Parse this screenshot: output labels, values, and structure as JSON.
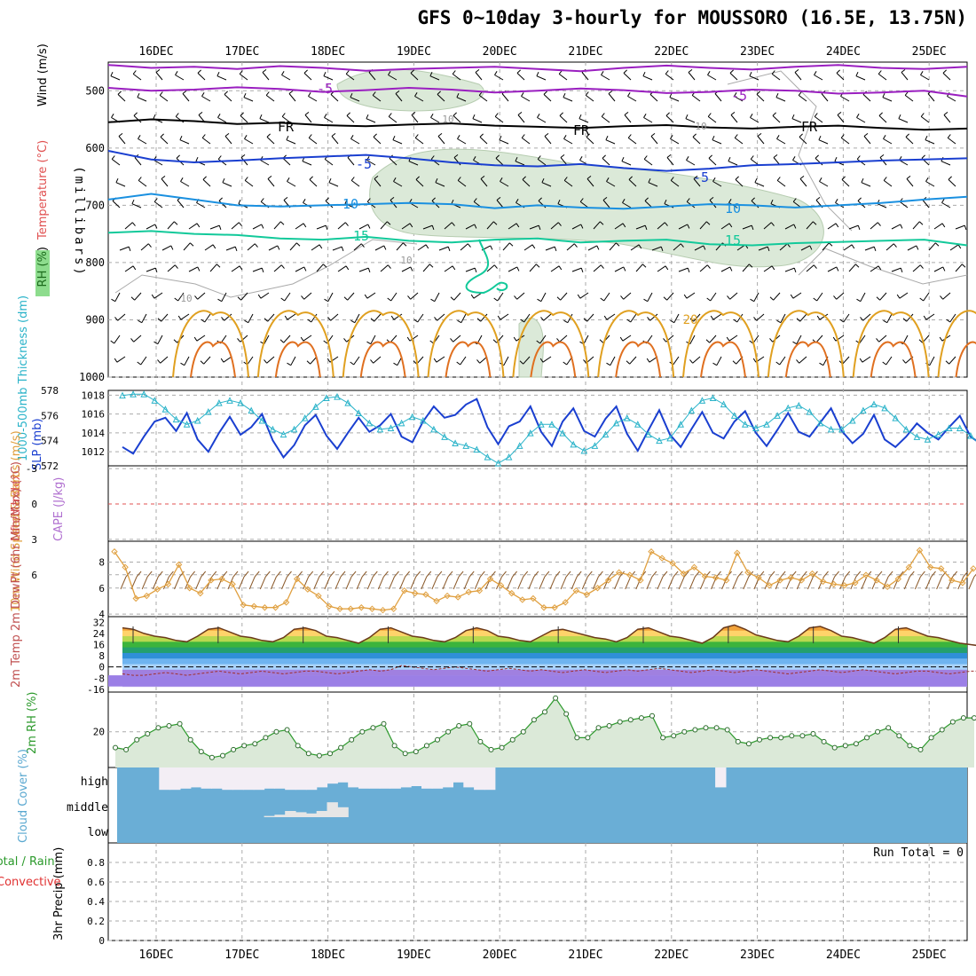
{
  "title": "GFS 0~10day 3-hourly for MOUSSORO (16.5E, 13.75N)",
  "dates": [
    "16DEC",
    "17DEC",
    "18DEC",
    "19DEC",
    "20DEC",
    "21DEC",
    "22DEC",
    "23DEC",
    "24DEC",
    "25DEC"
  ],
  "colors": {
    "purple": "#9a1fc0",
    "black": "#000000",
    "blue": "#1a3fd0",
    "lightblue": "#1a90e0",
    "teal": "#12c99a",
    "orange": "#e0a020",
    "rh_fill": "#dbe9d8",
    "slp": "#1a3fd0",
    "thick": "#2ab3c9",
    "wind10": "#e0a040",
    "barb": "#8b5a2b",
    "rh2m": "#2c9a2c",
    "cloud": "#6aaed6",
    "grid": "#aaaaaa"
  },
  "chart_data": [
    {
      "type": "line",
      "name": "upper-air",
      "ylabel_parts": [
        "RH (%)",
        "Temperature (°C)",
        "Wind (m/s)"
      ],
      "ylabel2": "(millibars)",
      "yticks": [
        500,
        600,
        700,
        800,
        900,
        1000
      ],
      "ylim": [
        450,
        1000
      ],
      "contour_labels": [
        "-5",
        "-5",
        "FR",
        "FR",
        "FR",
        "-5",
        "-5",
        "10",
        "10",
        "15",
        "15",
        "10",
        "10",
        "10",
        "20"
      ],
      "isotherms": [
        {
          "level": "-5",
          "color": "purple",
          "p": [
            455,
            460,
            458,
            462,
            457,
            460,
            465,
            462,
            460,
            458,
            462,
            466,
            460,
            456,
            460,
            463,
            458,
            455,
            460,
            462,
            458
          ]
        },
        {
          "level": "-5b",
          "color": "purple",
          "p": [
            495,
            500,
            498,
            494,
            497,
            502,
            499,
            495,
            498,
            503,
            500,
            496,
            499,
            504,
            502,
            498,
            500,
            505,
            503,
            500,
            510
          ]
        },
        {
          "level": "FR",
          "color": "black",
          "p": [
            555,
            550,
            553,
            558,
            556,
            560,
            562,
            559,
            557,
            561,
            563,
            565,
            562,
            560,
            564,
            566,
            563,
            561,
            565,
            568,
            566
          ]
        },
        {
          "level": "-5c",
          "color": "blue",
          "p": [
            605,
            620,
            625,
            622,
            618,
            615,
            612,
            618,
            625,
            630,
            632,
            628,
            635,
            640,
            636,
            630,
            628,
            625,
            622,
            620,
            618
          ]
        },
        {
          "level": "10",
          "color": "lightblue",
          "p": [
            690,
            680,
            690,
            700,
            702,
            700,
            698,
            696,
            698,
            705,
            700,
            704,
            706,
            702,
            698,
            700,
            704,
            700,
            696,
            690,
            685
          ]
        },
        {
          "level": "15",
          "color": "teal",
          "p": [
            748,
            745,
            750,
            752,
            758,
            760,
            755,
            762,
            765,
            760,
            758,
            765,
            762,
            760,
            768,
            770,
            766,
            764,
            762,
            760,
            770
          ]
        }
      ]
    },
    {
      "type": "line",
      "name": "slp-thickness",
      "ylabel_left": "1000-500mb Thickness (dm)",
      "ylabel_right": "SLP (mb)",
      "yticks_left": [
        "578",
        "576",
        "574",
        "572"
      ],
      "yticks_right": [
        "1018",
        "1016",
        "1014",
        "1012"
      ],
      "slp": [
        1012.5,
        1011.8,
        1013.6,
        1015.2,
        1015.6,
        1014.2,
        1016.1,
        1013.3,
        1012.0,
        1014.0,
        1015.7,
        1013.8,
        1014.6,
        1016.0,
        1013.2,
        1011.4,
        1012.7,
        1014.8,
        1015.9,
        1013.7,
        1012.3,
        1014.0,
        1015.6,
        1014.1,
        1014.8,
        1016.0,
        1013.6,
        1013.0,
        1015.2,
        1016.8,
        1015.6,
        1015.9,
        1017.0,
        1017.6,
        1014.6,
        1012.8,
        1014.7,
        1015.2,
        1016.8,
        1014.1,
        1012.6,
        1015.2,
        1016.6,
        1014.2,
        1013.6,
        1015.5,
        1016.8,
        1013.9,
        1012.1,
        1014.3,
        1016.4,
        1013.8,
        1012.5,
        1014.4,
        1016.2,
        1014.0,
        1013.4,
        1015.2,
        1016.3,
        1014.0,
        1012.6,
        1014.3,
        1016.1,
        1014.1,
        1013.6,
        1015.1,
        1016.6,
        1014.2,
        1012.9,
        1013.9,
        1015.9,
        1013.3,
        1012.5,
        1013.6,
        1015.0,
        1014.0,
        1013.3,
        1014.6,
        1015.8,
        1013.6,
        1012.8
      ],
      "thickness": [
        577.6,
        577.7,
        577.7,
        577.2,
        576.5,
        575.7,
        575.3,
        575.6,
        576.3,
        577.0,
        577.2,
        577.0,
        576.4,
        575.6,
        574.9,
        574.5,
        574.9,
        575.8,
        576.7,
        577.4,
        577.5,
        577.0,
        576.2,
        575.4,
        574.9,
        575.0,
        575.4,
        575.9,
        575.6,
        574.9,
        574.3,
        573.8,
        573.6,
        573.3,
        572.7,
        572.2,
        572.7,
        573.6,
        574.6,
        575.3,
        575.3,
        574.6,
        573.7,
        573.2,
        573.6,
        574.5,
        575.4,
        575.8,
        575.3,
        574.5,
        574.0,
        574.2,
        575.3,
        576.4,
        577.2,
        577.4,
        576.9,
        576.0,
        575.3,
        575.0,
        575.3,
        576.0,
        576.6,
        576.8,
        576.3,
        575.4,
        574.9,
        574.9,
        575.6,
        576.4,
        576.9,
        576.6,
        575.8,
        574.9,
        574.3,
        574.1,
        574.5,
        575.0,
        575.0,
        574.4,
        573.6
      ]
    },
    {
      "type": "line",
      "name": "cape-li",
      "ylabel_left": "Lifted Index",
      "ylabel_right": "CAPE (J/kg)",
      "yticks": [
        "-3",
        "0",
        "3",
        "6"
      ]
    },
    {
      "type": "line",
      "name": "wind10m",
      "ylabel": "10m Wind Speed & Barbs (m/s)",
      "yticks": [
        "8",
        "6",
        "4"
      ],
      "speed": [
        8.8,
        7.6,
        5.2,
        5.4,
        5.9,
        6.3,
        7.8,
        6.0,
        5.6,
        6.6,
        6.7,
        6.3,
        4.7,
        4.6,
        4.5,
        4.5,
        4.9,
        6.7,
        5.9,
        5.4,
        4.6,
        4.4,
        4.4,
        4.5,
        4.4,
        4.3,
        4.4,
        5.8,
        5.6,
        5.5,
        5.0,
        5.4,
        5.3,
        5.7,
        5.8,
        6.7,
        6.2,
        5.6,
        5.1,
        5.2,
        4.5,
        4.5,
        4.9,
        5.8,
        5.5,
        6.0,
        6.6,
        7.2,
        7.0,
        6.6,
        8.8,
        8.3,
        7.9,
        7.1,
        7.6,
        6.9,
        6.8,
        6.6,
        8.7,
        7.2,
        6.8,
        6.2,
        6.6,
        6.8,
        6.6,
        7.1,
        6.5,
        6.3,
        6.2,
        6.4,
        7.0,
        6.6,
        6.1,
        6.7,
        7.6,
        8.9,
        7.6,
        7.5,
        6.6,
        6.4,
        7.5
      ]
    },
    {
      "type": "area",
      "name": "temp2m",
      "ylabel": "2m Temp 2m DewPt (6hr Min/Max) (°C)",
      "yticks": [
        "32",
        "24",
        "16",
        "8",
        "0",
        "-8",
        "-16"
      ],
      "temp": [
        28,
        27,
        24,
        22,
        21,
        19,
        18,
        22,
        27,
        28,
        25,
        22,
        21,
        19,
        18,
        21,
        27,
        28,
        26,
        22,
        21,
        19,
        17,
        21,
        27,
        28,
        25,
        22,
        21,
        19,
        18,
        21,
        26,
        28,
        26,
        22,
        21,
        19,
        18,
        22,
        26,
        27,
        25,
        23,
        21,
        20,
        18,
        21,
        27,
        28,
        25,
        22,
        21,
        19,
        17,
        21,
        28,
        30,
        27,
        23,
        21,
        19,
        18,
        22,
        28,
        29,
        26,
        22,
        21,
        19,
        17,
        21,
        27,
        28,
        25,
        22,
        21,
        19,
        17,
        16,
        15
      ],
      "dewpt": [
        -5,
        -6,
        -6,
        -5,
        -4,
        -5,
        -6,
        -5,
        -4,
        -3,
        -4,
        -5,
        -4,
        -3,
        -4,
        -5,
        -4,
        -3,
        -3,
        -4,
        -5,
        -4,
        -3,
        -2,
        -3,
        -2,
        1,
        0,
        -1,
        -2,
        -1,
        0,
        -1,
        -2,
        -3,
        -2,
        -1,
        -2,
        -3,
        -2,
        -3,
        -4,
        -3,
        -2,
        -3,
        -4,
        -3,
        -2,
        -3,
        -2,
        -1,
        -2,
        -3,
        -4,
        -3,
        -2,
        -3,
        -4,
        -3,
        -2,
        -3,
        -4,
        -5,
        -4,
        -3,
        -2,
        -3,
        -4,
        -3,
        -2,
        -3,
        -4,
        -5,
        -4,
        -3,
        -3,
        -4,
        -5,
        -4,
        -3,
        -3
      ]
    },
    {
      "type": "area",
      "name": "rh2m",
      "ylabel": "2m RH (%)",
      "yticks": [
        "20"
      ],
      "rh": [
        12,
        11,
        16,
        19,
        22,
        23,
        24,
        16,
        10,
        7,
        8,
        11,
        13,
        14,
        17,
        20,
        21,
        13,
        9,
        8,
        9,
        12,
        16,
        20,
        22,
        24,
        13,
        9,
        10,
        13,
        16,
        20,
        23,
        24,
        15,
        11,
        12,
        16,
        20,
        26,
        30,
        37,
        29,
        17,
        17,
        22,
        23,
        25,
        26,
        27,
        28,
        17,
        18,
        20,
        21,
        22,
        22,
        21,
        15,
        14,
        16,
        17,
        17,
        18,
        18,
        19,
        15,
        12,
        13,
        14,
        17,
        20,
        22,
        18,
        13,
        11,
        17,
        21,
        25,
        27,
        27
      ]
    },
    {
      "type": "bar",
      "name": "cloud-cover",
      "ylabel": "Cloud Cover (%)",
      "layers": [
        "high",
        "middle",
        "low"
      ],
      "high": [
        100,
        100,
        100,
        100,
        10,
        10,
        15,
        20,
        15,
        15,
        10,
        10,
        10,
        10,
        15,
        15,
        10,
        10,
        10,
        20,
        35,
        40,
        20,
        15,
        15,
        15,
        15,
        20,
        25,
        15,
        15,
        20,
        40,
        20,
        10,
        10,
        100,
        100,
        100,
        100,
        100,
        100,
        100,
        100,
        100,
        100,
        100,
        100,
        100,
        100,
        100,
        100,
        100,
        100,
        100,
        100,
        100,
        20,
        100,
        100,
        100,
        100,
        100,
        100,
        100,
        100,
        100,
        100,
        100,
        100,
        100,
        100,
        100,
        100,
        100,
        100,
        100,
        100,
        100,
        100,
        100
      ],
      "middle": [
        0,
        0,
        0,
        0,
        0,
        0,
        0,
        0,
        0,
        0,
        0,
        0,
        0,
        0,
        5,
        10,
        25,
        20,
        15,
        25,
        60,
        40,
        0,
        0,
        0,
        0,
        0,
        0,
        0,
        0,
        0,
        0,
        0,
        0,
        0,
        0,
        0,
        0,
        0,
        0,
        0,
        0,
        0,
        0,
        0,
        0,
        0,
        0,
        0,
        0,
        0,
        0,
        0,
        0,
        0,
        0,
        0,
        0,
        0,
        0,
        0,
        0,
        0,
        0,
        0,
        0,
        0,
        0,
        0,
        0,
        0,
        0,
        0,
        0,
        0,
        0,
        0,
        0,
        0,
        0,
        0
      ]
    },
    {
      "type": "bar",
      "name": "precip",
      "ylabel_left": "Total / Rain",
      "ylabel_left2": "Convective",
      "ylabel": "3hr Precip (mm)",
      "yticks": [
        "0.8",
        "0.6",
        "0.4",
        "0.2",
        "0"
      ],
      "annotation": "Run Total = 0",
      "values": []
    }
  ]
}
